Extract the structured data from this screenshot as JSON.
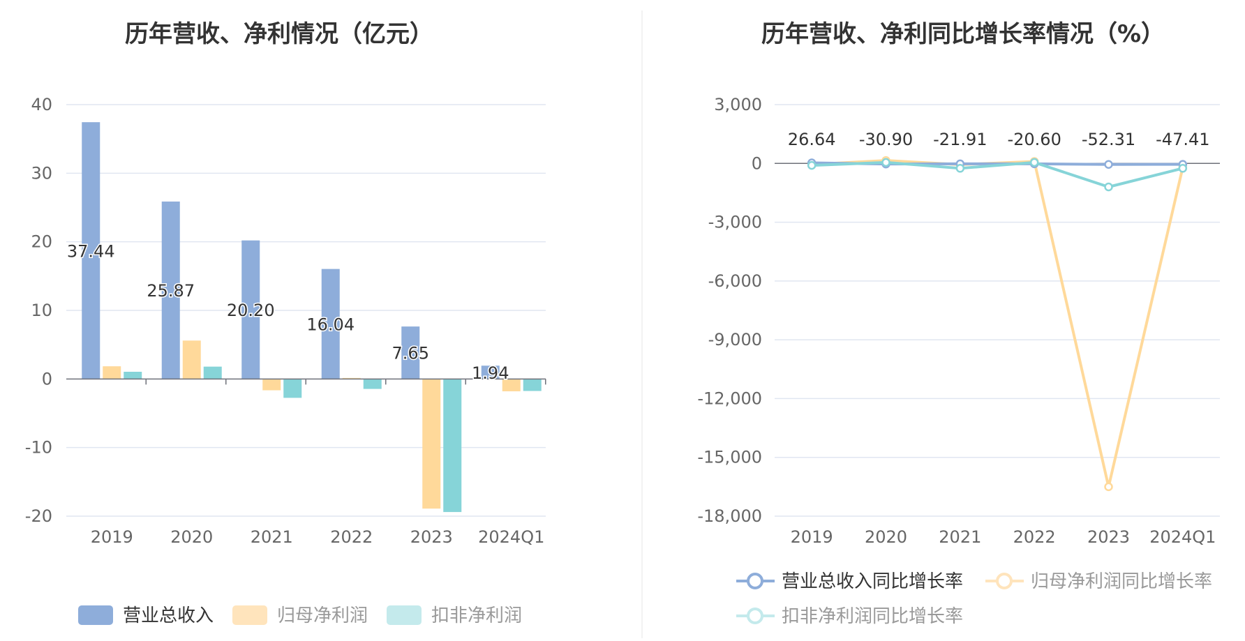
{
  "colors": {
    "revenue": "#8EADDA",
    "net_profit": "#FFD99A",
    "deducted_profit": "#86D4D8",
    "grid": "#E0E6F1",
    "axis": "#6E7079",
    "divider": "#E6E6E6"
  },
  "chart_data": [
    {
      "type": "bar",
      "title": "历年营收、净利情况（亿元）",
      "categories": [
        "2019",
        "2020",
        "2021",
        "2022",
        "2023",
        "2024Q1"
      ],
      "ylim": [
        -20,
        40
      ],
      "yticks": [
        40,
        30,
        20,
        10,
        0,
        -10,
        -20
      ],
      "grid": true,
      "legend_placement": "bottom",
      "series": [
        {
          "name": "营业总收入",
          "values": [
            37.44,
            25.87,
            20.2,
            16.04,
            7.65,
            1.94
          ],
          "labels": [
            "37.44",
            "25.87",
            "20.20",
            "16.04",
            "7.65",
            "1.94"
          ]
        },
        {
          "name": "归母净利润",
          "values": [
            1.85,
            5.6,
            -1.65,
            0.15,
            -18.9,
            -1.8
          ]
        },
        {
          "name": "扣非净利润",
          "values": [
            1.05,
            1.8,
            -2.75,
            -1.45,
            -19.4,
            -1.75
          ]
        }
      ]
    },
    {
      "type": "line",
      "title": "历年营收、净利同比增长率情况（%）",
      "categories": [
        "2019",
        "2020",
        "2021",
        "2022",
        "2023",
        "2024Q1"
      ],
      "ylim": [
        -18000,
        3000
      ],
      "yticks": [
        "3,000",
        "0",
        "-3,000",
        "-6,000",
        "-9,000",
        "-12,000",
        "-15,000",
        "-18,000"
      ],
      "grid": true,
      "legend_placement": "bottom",
      "series": [
        {
          "name": "营业总收入同比增长率",
          "values": [
            26.64,
            -30.9,
            -21.91,
            -20.6,
            -52.31,
            -47.41
          ],
          "labels": [
            "26.64",
            "-30.90",
            "-21.91",
            "-20.60",
            "-52.31",
            "-47.41"
          ]
        },
        {
          "name": "归母净利润同比增长率",
          "values": [
            -50,
            150,
            -60,
            100,
            -16500,
            -200
          ]
        },
        {
          "name": "扣非净利润同比增长率",
          "values": [
            -100,
            50,
            -250,
            50,
            -1200,
            -250
          ]
        }
      ]
    }
  ]
}
